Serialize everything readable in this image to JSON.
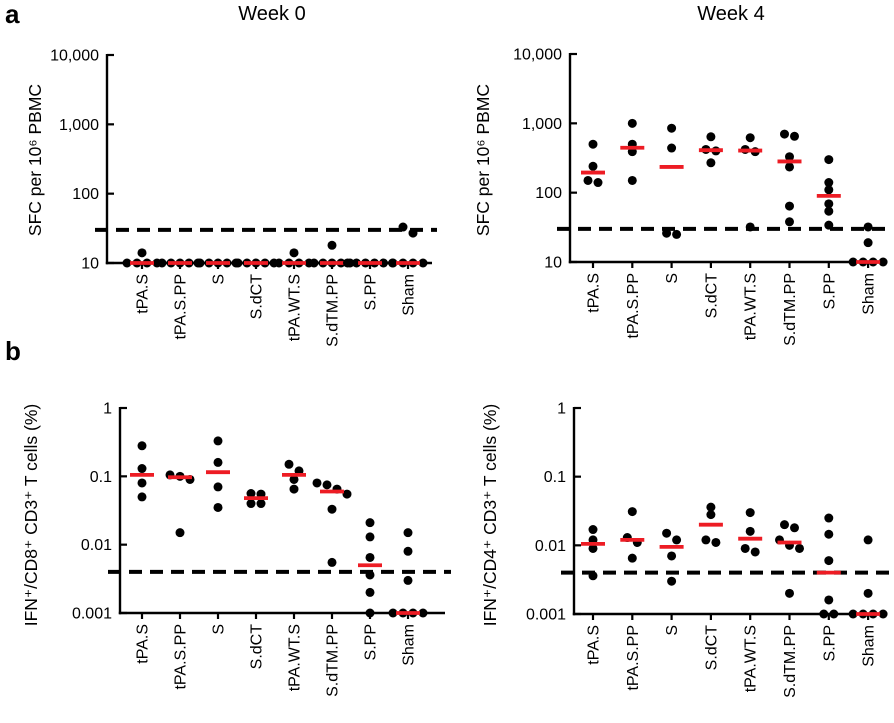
{
  "figure": {
    "panel_a_label": "a",
    "panel_b_label": "b",
    "col_titles": [
      "Week 0",
      "Week 4"
    ],
    "colors": {
      "dot": "#000000",
      "median_line": "#ED1C24",
      "threshold_dashed_line": "#000000",
      "axis": "#000000"
    }
  },
  "chart_data": [
    {
      "id": "a_week0",
      "type": "scatter",
      "title": "Week 0",
      "ylabel": "SFC per 10⁶ PBMC",
      "yscale": "log",
      "ylim": [
        10,
        10000
      ],
      "yticks": [
        {
          "value": 10,
          "label": "10"
        },
        {
          "value": 100,
          "label": "100"
        },
        {
          "value": 1000,
          "label": "1,000"
        },
        {
          "value": 10000,
          "label": "10,000"
        }
      ],
      "threshold": 30,
      "categories": [
        "tPA.S",
        "tPA.S.PP",
        "S",
        "S.dCT",
        "tPA.WT.S",
        "S.dTM.PP",
        "S.PP",
        "Sham"
      ],
      "groups": [
        {
          "label": "tPA.S",
          "values": [
            10,
            10,
            10,
            10,
            14
          ],
          "median": 10
        },
        {
          "label": "tPA.S.PP",
          "values": [
            10,
            10,
            10,
            10,
            10
          ],
          "median": 10
        },
        {
          "label": "S",
          "values": [
            10,
            10,
            10,
            10,
            10
          ],
          "median": 10
        },
        {
          "label": "S.dCT",
          "values": [
            10,
            10,
            10,
            10,
            10
          ],
          "median": 10
        },
        {
          "label": "tPA.WT.S",
          "values": [
            10,
            10,
            10,
            10,
            14
          ],
          "median": 10
        },
        {
          "label": "S.dTM.PP",
          "values": [
            10,
            10,
            10,
            10,
            10,
            18
          ],
          "median": 10
        },
        {
          "label": "S.PP",
          "values": [
            10,
            10,
            10,
            10,
            10,
            10
          ],
          "median": 10
        },
        {
          "label": "Sham",
          "values": [
            10,
            10,
            10,
            10,
            27,
            33
          ],
          "median": 10
        }
      ]
    },
    {
      "id": "a_week4",
      "type": "scatter",
      "title": "Week 4",
      "ylabel": "SFC per 10⁶ PBMC",
      "yscale": "log",
      "ylim": [
        10,
        10000
      ],
      "yticks": [
        {
          "value": 10,
          "label": "10"
        },
        {
          "value": 100,
          "label": "100"
        },
        {
          "value": 1000,
          "label": "1,000"
        },
        {
          "value": 10000,
          "label": "10,000"
        }
      ],
      "threshold": 30,
      "categories": [
        "tPA.S",
        "tPA.S.PP",
        "S",
        "S.dCT",
        "tPA.WT.S",
        "S.dTM.PP",
        "S.PP",
        "Sham"
      ],
      "groups": [
        {
          "label": "tPA.S",
          "values": [
            140,
            150,
            240,
            500
          ],
          "median": 195
        },
        {
          "label": "tPA.S.PP",
          "values": [
            150,
            390,
            500,
            1000
          ],
          "median": 445
        },
        {
          "label": "S",
          "values": [
            25,
            26,
            440,
            850
          ],
          "median": 235
        },
        {
          "label": "S.dCT",
          "values": [
            270,
            400,
            420,
            640
          ],
          "median": 410
        },
        {
          "label": "tPA.WT.S",
          "values": [
            32,
            390,
            420,
            620
          ],
          "median": 405
        },
        {
          "label": "S.dTM.PP",
          "values": [
            38,
            64,
            235,
            330,
            650,
            700
          ],
          "median": 282
        },
        {
          "label": "S.PP",
          "values": [
            34,
            54,
            69,
            110,
            140,
            300
          ],
          "median": 90
        },
        {
          "label": "Sham",
          "values": [
            10,
            10,
            10,
            10,
            19,
            32
          ],
          "median": 10
        }
      ]
    },
    {
      "id": "b_week0",
      "type": "scatter",
      "title": "Week 0",
      "ylabel": "IFN⁺/CD8⁺ CD3⁺ T cells (%)",
      "yscale": "log",
      "ylim": [
        0.001,
        1
      ],
      "yticks": [
        {
          "value": 0.001,
          "label": "0.001"
        },
        {
          "value": 0.01,
          "label": "0.01"
        },
        {
          "value": 0.1,
          "label": "0.1"
        },
        {
          "value": 1,
          "label": "1"
        }
      ],
      "threshold": 0.004,
      "categories": [
        "tPA.S",
        "tPA.S.PP",
        "S",
        "S.dCT",
        "tPA.WT.S",
        "S.dTM.PP",
        "S.PP",
        "Sham"
      ],
      "groups": [
        {
          "label": "tPA.S",
          "values": [
            0.05,
            0.08,
            0.13,
            0.28
          ],
          "median": 0.105
        },
        {
          "label": "tPA.S.PP",
          "values": [
            0.015,
            0.09,
            0.1,
            0.105
          ],
          "median": 0.097
        },
        {
          "label": "S",
          "values": [
            0.035,
            0.07,
            0.16,
            0.33
          ],
          "median": 0.115
        },
        {
          "label": "S.dCT",
          "values": [
            0.04,
            0.04,
            0.055,
            0.056
          ],
          "median": 0.048
        },
        {
          "label": "tPA.WT.S",
          "values": [
            0.065,
            0.09,
            0.12,
            0.15
          ],
          "median": 0.105
        },
        {
          "label": "S.dTM.PP",
          "values": [
            0.0055,
            0.033,
            0.055,
            0.065,
            0.075,
            0.08
          ],
          "median": 0.06
        },
        {
          "label": "S.PP",
          "values": [
            0.001,
            0.002,
            0.0036,
            0.0065,
            0.013,
            0.021
          ],
          "median": 0.005
        },
        {
          "label": "Sham",
          "values": [
            0.001,
            0.001,
            0.001,
            0.001,
            0.003,
            0.008,
            0.015
          ],
          "median": 0.001
        }
      ]
    },
    {
      "id": "b_week4",
      "type": "scatter",
      "title": "Week 4",
      "ylabel": "IFN⁺/CD4⁺ CD3⁺ T cells (%)",
      "yscale": "log",
      "ylim": [
        0.001,
        1
      ],
      "yticks": [
        {
          "value": 0.001,
          "label": "0.001"
        },
        {
          "value": 0.01,
          "label": "0.01"
        },
        {
          "value": 0.1,
          "label": "0.1"
        },
        {
          "value": 1,
          "label": "1"
        }
      ],
      "threshold": 0.004,
      "categories": [
        "tPA.S",
        "tPA.S.PP",
        "S",
        "S.dCT",
        "tPA.WT.S",
        "S.dTM.PP",
        "S.PP",
        "Sham"
      ],
      "groups": [
        {
          "label": "tPA.S",
          "values": [
            0.0036,
            0.009,
            0.012,
            0.017
          ],
          "median": 0.0105
        },
        {
          "label": "tPA.S.PP",
          "values": [
            0.0065,
            0.011,
            0.013,
            0.031
          ],
          "median": 0.012
        },
        {
          "label": "S",
          "values": [
            0.003,
            0.007,
            0.012,
            0.015
          ],
          "median": 0.0095
        },
        {
          "label": "S.dCT",
          "values": [
            0.011,
            0.012,
            0.028,
            0.036
          ],
          "median": 0.02
        },
        {
          "label": "tPA.WT.S",
          "values": [
            0.008,
            0.009,
            0.016,
            0.03
          ],
          "median": 0.0125
        },
        {
          "label": "S.dTM.PP",
          "values": [
            0.002,
            0.009,
            0.01,
            0.012,
            0.018,
            0.02
          ],
          "median": 0.011
        },
        {
          "label": "S.PP",
          "values": [
            0.001,
            0.001,
            0.0016,
            0.006,
            0.0145,
            0.025
          ],
          "median": 0.004
        },
        {
          "label": "Sham",
          "values": [
            0.001,
            0.001,
            0.001,
            0.001,
            0.002,
            0.012
          ],
          "median": 0.001
        }
      ]
    }
  ]
}
